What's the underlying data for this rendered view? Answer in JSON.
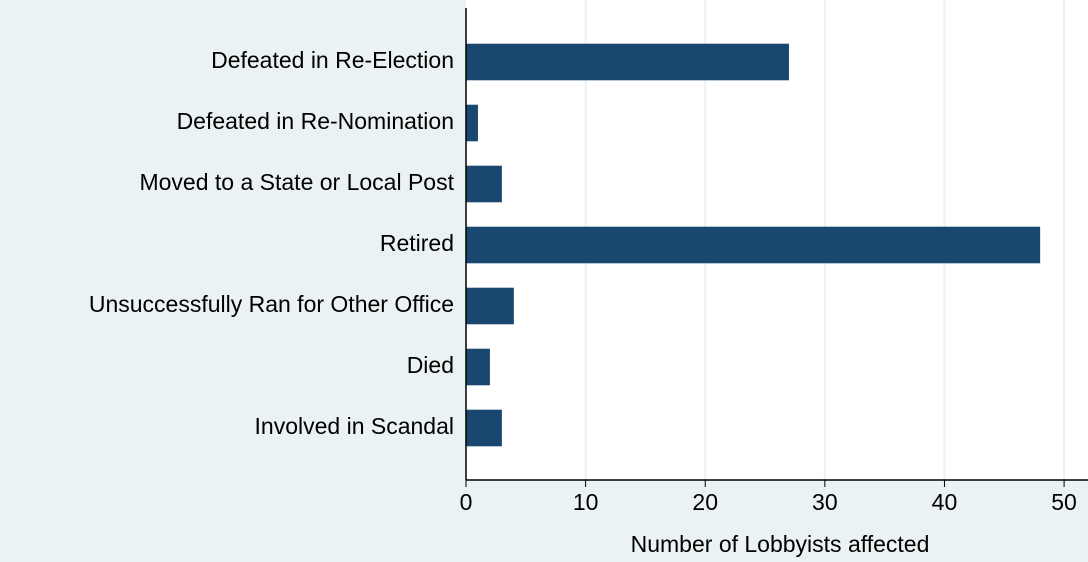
{
  "chart_data": {
    "type": "hbar",
    "categories": [
      "Defeated in Re-Election",
      "Defeated in Re-Nomination",
      "Moved to a State or Local Post",
      "Retired",
      "Unsuccessfully Ran for Other Office",
      "Died",
      "Involved in Scandal"
    ],
    "values": [
      27,
      1,
      3,
      48,
      4,
      2,
      3
    ],
    "color": "#1a476f",
    "xlabel": "Number of Lobbyists affected",
    "xlim": [
      0,
      52
    ],
    "xticks": [
      0,
      10,
      20,
      30,
      40,
      50
    ],
    "grid": true
  }
}
